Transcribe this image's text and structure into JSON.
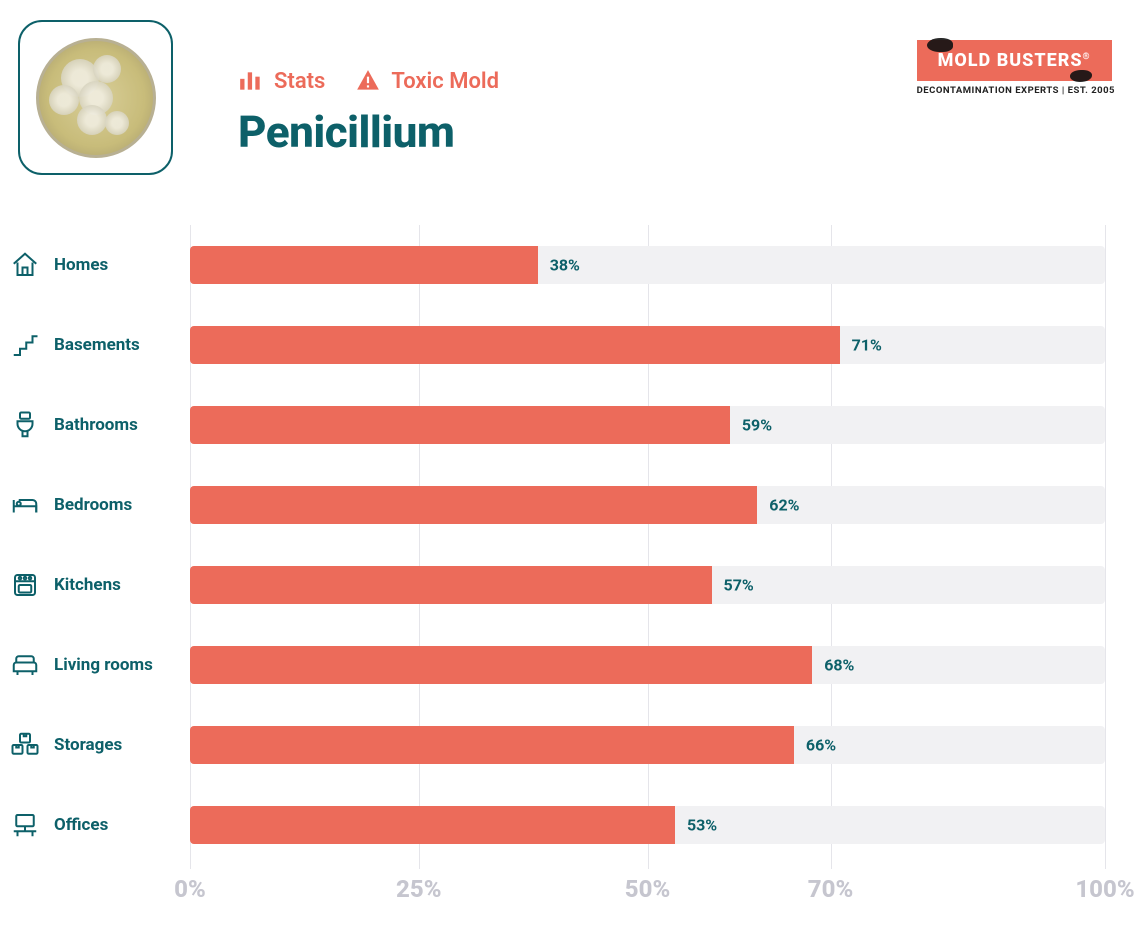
{
  "header": {
    "tag_stats": "Stats",
    "tag_toxic": "Toxic Mold",
    "title": "Penicillium"
  },
  "logo": {
    "brand": "MOLD BUSTERS",
    "tagline": "DECONTAMINATION EXPERTS | EST. 2005",
    "brand_bg": "#ec6b5a",
    "brand_fg": "#ffffff"
  },
  "chart": {
    "type": "bar-horizontal",
    "bar_color": "#ec6b5a",
    "track_color": "#f1f1f3",
    "label_color": "#0d6069",
    "axis_color": "#c6c6cf",
    "grid_color": "#e5e5ea",
    "value_label_fontsize": 16,
    "category_fontsize": 17,
    "axis_fontsize": 24,
    "xlim": [
      0,
      100
    ],
    "ticks": [
      {
        "pos": 0,
        "label": "0%"
      },
      {
        "pos": 25,
        "label": "25%"
      },
      {
        "pos": 50,
        "label": "50%"
      },
      {
        "pos": 70,
        "label": "70%"
      },
      {
        "pos": 100,
        "label": "100%"
      }
    ],
    "rows": [
      {
        "icon": "home",
        "label": "Homes",
        "value": 38,
        "value_label": "38%"
      },
      {
        "icon": "stairs",
        "label": "Basements",
        "value": 71,
        "value_label": "71%"
      },
      {
        "icon": "toilet",
        "label": "Bathrooms",
        "value": 59,
        "value_label": "59%"
      },
      {
        "icon": "bed",
        "label": "Bedrooms",
        "value": 62,
        "value_label": "62%"
      },
      {
        "icon": "oven",
        "label": "Kitchens",
        "value": 57,
        "value_label": "57%"
      },
      {
        "icon": "sofa",
        "label": "Living rooms",
        "value": 68,
        "value_label": "68%"
      },
      {
        "icon": "boxes",
        "label": "Storages",
        "value": 66,
        "value_label": "66%"
      },
      {
        "icon": "desk",
        "label": "Offices",
        "value": 53,
        "value_label": "53%"
      }
    ]
  }
}
